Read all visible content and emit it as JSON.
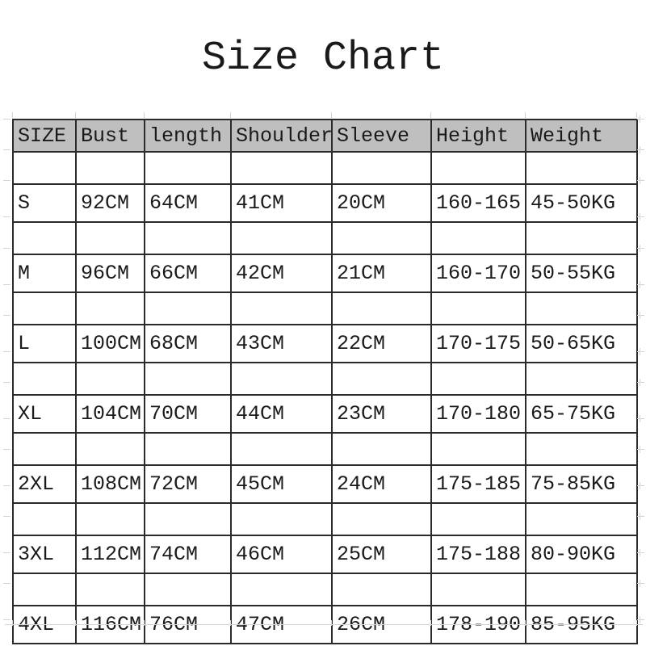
{
  "title": "Size Chart",
  "table": {
    "headers": [
      "SIZE",
      "Bust",
      "length",
      "Shoulder",
      "Sleeve",
      "Height",
      "Weight"
    ],
    "rows": [
      [
        "S",
        "92CM",
        "64CM",
        "41CM",
        "20CM",
        "160-165",
        "45-50KG"
      ],
      [
        "M",
        "96CM",
        "66CM",
        "42CM",
        "21CM",
        "160-170",
        "50-55KG"
      ],
      [
        "L",
        "100CM",
        "68CM",
        "43CM",
        "22CM",
        "170-175",
        "50-65KG"
      ],
      [
        "XL",
        "104CM",
        "70CM",
        "44CM",
        "23CM",
        "170-180",
        "65-75KG"
      ],
      [
        "2XL",
        "108CM",
        "72CM",
        "45CM",
        "24CM",
        "175-185",
        "75-85KG"
      ],
      [
        "3XL",
        "112CM",
        "74CM",
        "46CM",
        "25CM",
        "175-188",
        "80-90KG"
      ],
      [
        "4XL",
        "116CM",
        "76CM",
        "47CM",
        "26CM",
        "178-190",
        "85-95KG"
      ]
    ]
  },
  "colors": {
    "header_background": "#bfbfbf",
    "grid_border": "#2b2b2b",
    "faint_gridline": "#d4d4d4",
    "text": "#1a1a1a",
    "background": "#ffffff"
  }
}
